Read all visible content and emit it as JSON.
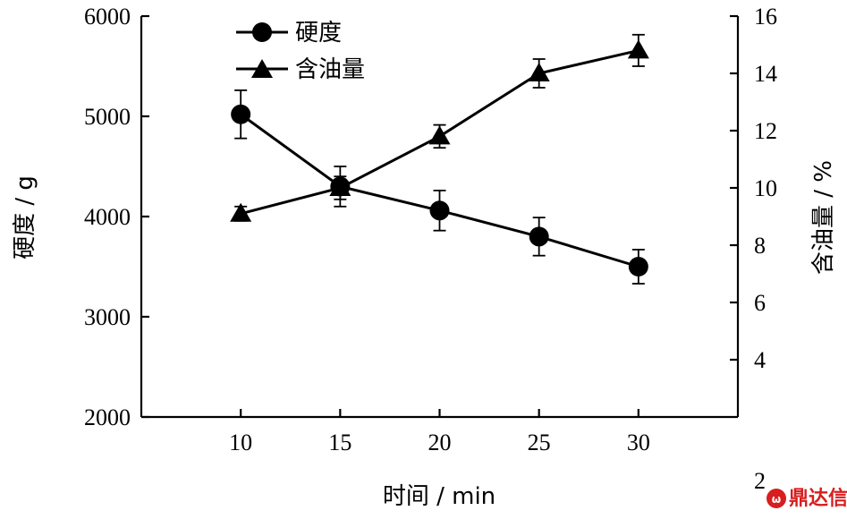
{
  "chart_data": {
    "type": "line",
    "x": [
      10,
      15,
      20,
      25,
      30
    ],
    "xticks": [
      "10",
      "15",
      "20",
      "25",
      "30"
    ],
    "xlabel": "时间 / min",
    "ylabel_left": "硬度 / g",
    "ylabel_right": "含油量 / %",
    "ylim_left": [
      2000,
      6000
    ],
    "ylim_right": [
      2,
      16
    ],
    "yticks_left": [
      "2000",
      "3000",
      "4000",
      "5000",
      "6000"
    ],
    "yticks_right": [
      "2",
      "4",
      "6",
      "8",
      "10",
      "12",
      "14",
      "16"
    ],
    "grid": false,
    "legend_position": "top-left",
    "series": [
      {
        "name": "硬度",
        "axis": "left",
        "marker": "circle",
        "values": [
          5020,
          4300,
          4060,
          3800,
          3500
        ],
        "errors": [
          240,
          200,
          200,
          190,
          170
        ]
      },
      {
        "name": "含油量",
        "axis": "right",
        "marker": "triangle",
        "values": [
          9.1,
          10.0,
          11.8,
          14.0,
          14.8
        ],
        "errors": [
          0.25,
          0.4,
          0.4,
          0.5,
          0.55
        ]
      }
    ]
  },
  "watermark": {
    "text": "鼎达信",
    "color": "#d81e1e"
  }
}
